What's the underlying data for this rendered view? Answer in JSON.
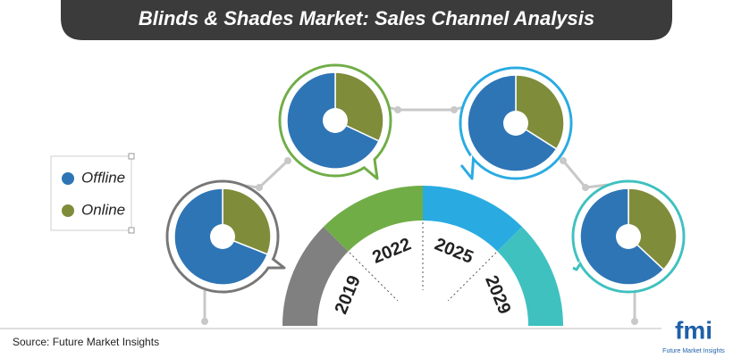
{
  "chart_data": {
    "type": "donut",
    "title": "Blinds & Shades Market: Sales Channel Analysis",
    "categories": [
      "2019",
      "2022",
      "2025",
      "2029"
    ],
    "series": [
      {
        "name": "Offline",
        "color": "#2e75b6",
        "values": [
          69,
          68,
          66,
          63
        ]
      },
      {
        "name": "Online",
        "color": "#7f8c3a",
        "values": [
          31,
          32,
          34,
          37
        ]
      }
    ],
    "source": "Source: Future Market Insights",
    "logo": {
      "mark": "fmi",
      "name": "Future Market Insights"
    }
  }
}
